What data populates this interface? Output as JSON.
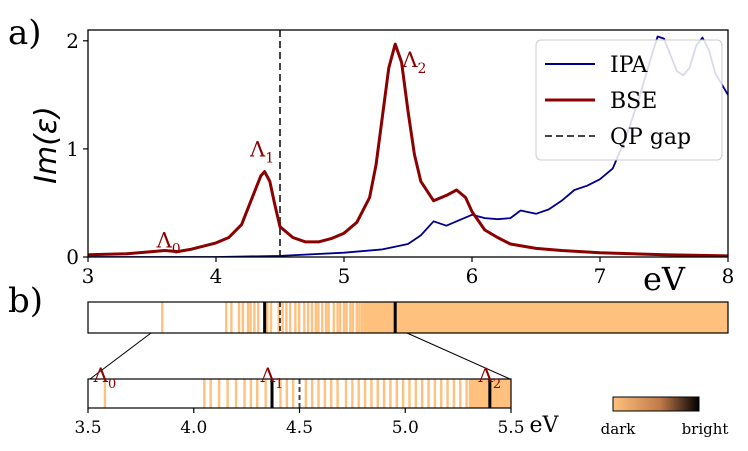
{
  "chart_data": [
    {
      "panel": "a",
      "panel_label": "a)",
      "type": "line",
      "ylabel": "Im(ε)",
      "xlabel": "eV",
      "xlim": [
        3,
        8
      ],
      "ylim": [
        0,
        2.1
      ],
      "xticks": [
        3,
        4,
        5,
        6,
        7,
        8
      ],
      "yticks": [
        0,
        1,
        2
      ],
      "legend_position": "top-right",
      "series": [
        {
          "name": "IPA",
          "color": "#00008b",
          "style": "solid",
          "x": [
            3.0,
            4.0,
            4.5,
            5.0,
            5.3,
            5.5,
            5.6,
            5.7,
            5.8,
            5.9,
            6.0,
            6.1,
            6.2,
            6.3,
            6.38,
            6.5,
            6.6,
            6.7,
            6.8,
            6.9,
            7.0,
            7.1,
            7.2,
            7.3,
            7.4,
            7.45,
            7.5,
            7.6,
            7.65,
            7.7,
            7.75,
            7.8,
            7.85,
            7.9,
            8.0
          ],
          "y": [
            0.0,
            0.0,
            0.01,
            0.04,
            0.07,
            0.12,
            0.2,
            0.33,
            0.29,
            0.34,
            0.39,
            0.36,
            0.35,
            0.36,
            0.43,
            0.4,
            0.44,
            0.52,
            0.62,
            0.66,
            0.72,
            0.82,
            1.1,
            1.45,
            1.85,
            2.04,
            2.02,
            1.72,
            1.68,
            1.75,
            1.95,
            2.03,
            1.92,
            1.7,
            1.5
          ]
        },
        {
          "name": "BSE",
          "color": "#8b0000",
          "style": "solid",
          "x": [
            3.0,
            3.3,
            3.5,
            3.6,
            3.7,
            3.8,
            3.9,
            4.0,
            4.1,
            4.2,
            4.3,
            4.35,
            4.38,
            4.42,
            4.46,
            4.5,
            4.6,
            4.7,
            4.8,
            4.9,
            5.0,
            5.1,
            5.2,
            5.25,
            5.3,
            5.35,
            5.4,
            5.45,
            5.5,
            5.55,
            5.6,
            5.7,
            5.8,
            5.88,
            5.95,
            6.0,
            6.1,
            6.2,
            6.3,
            6.5,
            6.7,
            7.0,
            7.5,
            8.0
          ],
          "y": [
            0.02,
            0.03,
            0.05,
            0.06,
            0.05,
            0.07,
            0.1,
            0.13,
            0.18,
            0.3,
            0.6,
            0.75,
            0.79,
            0.7,
            0.48,
            0.28,
            0.18,
            0.14,
            0.14,
            0.17,
            0.22,
            0.32,
            0.55,
            0.85,
            1.3,
            1.75,
            1.97,
            1.8,
            1.35,
            0.95,
            0.7,
            0.52,
            0.57,
            0.62,
            0.55,
            0.42,
            0.25,
            0.18,
            0.12,
            0.08,
            0.06,
            0.04,
            0.02,
            0.01
          ]
        },
        {
          "name": "QP gap",
          "color": "#444444",
          "style": "dashed",
          "vline_x": 4.5
        }
      ],
      "annotations": [
        {
          "text": "Λ",
          "sub": "0",
          "x": 3.63,
          "y": 0.09,
          "color": "#8b0000"
        },
        {
          "text": "Λ",
          "sub": "1",
          "x": 4.36,
          "y": 0.93,
          "color": "#8b0000"
        },
        {
          "text": "Λ",
          "sub": "2",
          "x": 5.55,
          "y": 1.76,
          "color": "#8b0000"
        }
      ]
    },
    {
      "panel": "b",
      "panel_label": "b)",
      "type": "heatmap",
      "xlim": [
        3,
        8
      ],
      "colormap_low": "#ffc17d",
      "colormap_high": "#000000",
      "colorbar_labels": {
        "low": "dark",
        "high": "bright"
      },
      "colorbar_ticks": [
        "dark",
        "bright"
      ],
      "qp_gap": 4.5,
      "background_fill_from": 5.15,
      "background_fill_to": 8.0,
      "excitation_lines_light": [
        3.58,
        4.08,
        4.12,
        4.18,
        4.21,
        4.25,
        4.27,
        4.3,
        4.33,
        4.4,
        4.43,
        4.49,
        4.52,
        4.55,
        4.58,
        4.62,
        4.65,
        4.69,
        4.72,
        4.75,
        4.78,
        4.8,
        4.83,
        4.86,
        4.88,
        4.92,
        4.95,
        4.97,
        5.0,
        5.02,
        5.05,
        5.07,
        5.1,
        5.12,
        5.14
      ],
      "excitation_lines_dark": [
        4.38,
        5.4
      ]
    },
    {
      "panel": "b-inset",
      "type": "heatmap",
      "xlim": [
        3.5,
        5.5
      ],
      "xticks": [
        3.5,
        4.0,
        4.5,
        5.0,
        5.5
      ],
      "xticklabels": [
        "3.5",
        "4.0",
        "4.5",
        "5.0",
        "5.5"
      ],
      "xlabel": "eV",
      "qp_gap": 4.5,
      "background_fill_from": 5.3,
      "background_fill_to": 5.5,
      "excitation_lines_light": [
        3.58,
        4.05,
        4.08,
        4.12,
        4.16,
        4.2,
        4.24,
        4.27,
        4.3,
        4.34,
        4.41,
        4.44,
        4.47,
        4.53,
        4.56,
        4.59,
        4.62,
        4.65,
        4.68,
        4.72,
        4.75,
        4.78,
        4.81,
        4.84,
        4.87,
        4.9,
        4.93,
        4.96,
        4.99,
        5.02,
        5.05,
        5.08,
        5.11,
        5.14,
        5.17,
        5.2,
        5.23,
        5.26,
        5.29
      ],
      "excitation_lines_dark": [
        4.37,
        5.4
      ],
      "annotations": [
        {
          "text": "Λ",
          "sub": "0",
          "x": 3.58
        },
        {
          "text": "Λ",
          "sub": "1",
          "x": 4.37
        },
        {
          "text": "Λ",
          "sub": "2",
          "x": 5.4
        }
      ]
    }
  ]
}
